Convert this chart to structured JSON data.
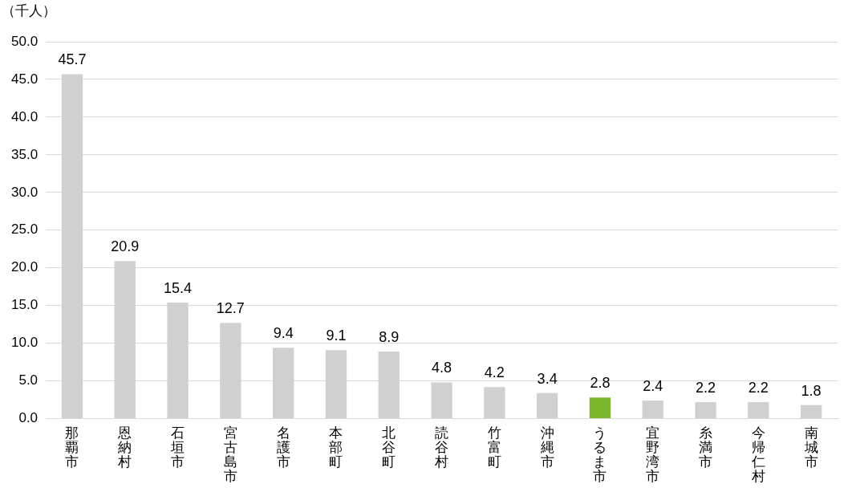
{
  "chart_data": {
    "type": "bar",
    "ylabel": "（千人）",
    "categories": [
      "那覇市",
      "恩納村",
      "石垣市",
      "宮古島市",
      "名護市",
      "本部町",
      "北谷町",
      "読谷村",
      "竹富町",
      "沖縄市",
      "うるま市",
      "宜野湾市",
      "糸満市",
      "今帰仁村",
      "南城市"
    ],
    "values": [
      45.7,
      20.9,
      15.4,
      12.7,
      9.4,
      9.1,
      8.9,
      4.8,
      4.2,
      3.4,
      2.8,
      2.4,
      2.2,
      2.2,
      1.8
    ],
    "colors": [
      "#d0d0d0",
      "#d0d0d0",
      "#d0d0d0",
      "#d0d0d0",
      "#d0d0d0",
      "#d0d0d0",
      "#d0d0d0",
      "#d0d0d0",
      "#d0d0d0",
      "#d0d0d0",
      "#7ab52b",
      "#d0d0d0",
      "#d0d0d0",
      "#d0d0d0",
      "#d0d0d0"
    ],
    "ylim": [
      0,
      50
    ],
    "yticks": [
      {
        "value": 0,
        "label": "0.0"
      },
      {
        "value": 5,
        "label": "5.0"
      },
      {
        "value": 10,
        "label": "10.0"
      },
      {
        "value": 15,
        "label": "15.0"
      },
      {
        "value": 20,
        "label": "20.0"
      },
      {
        "value": 25,
        "label": "25.0"
      },
      {
        "value": 30,
        "label": "30.0"
      },
      {
        "value": 35,
        "label": "35.0"
      },
      {
        "value": 40,
        "label": "40.0"
      },
      {
        "value": 45,
        "label": "45.0"
      },
      {
        "value": 50,
        "label": "50.0"
      }
    ],
    "grid": "y",
    "data_labels": true,
    "legend": false
  }
}
